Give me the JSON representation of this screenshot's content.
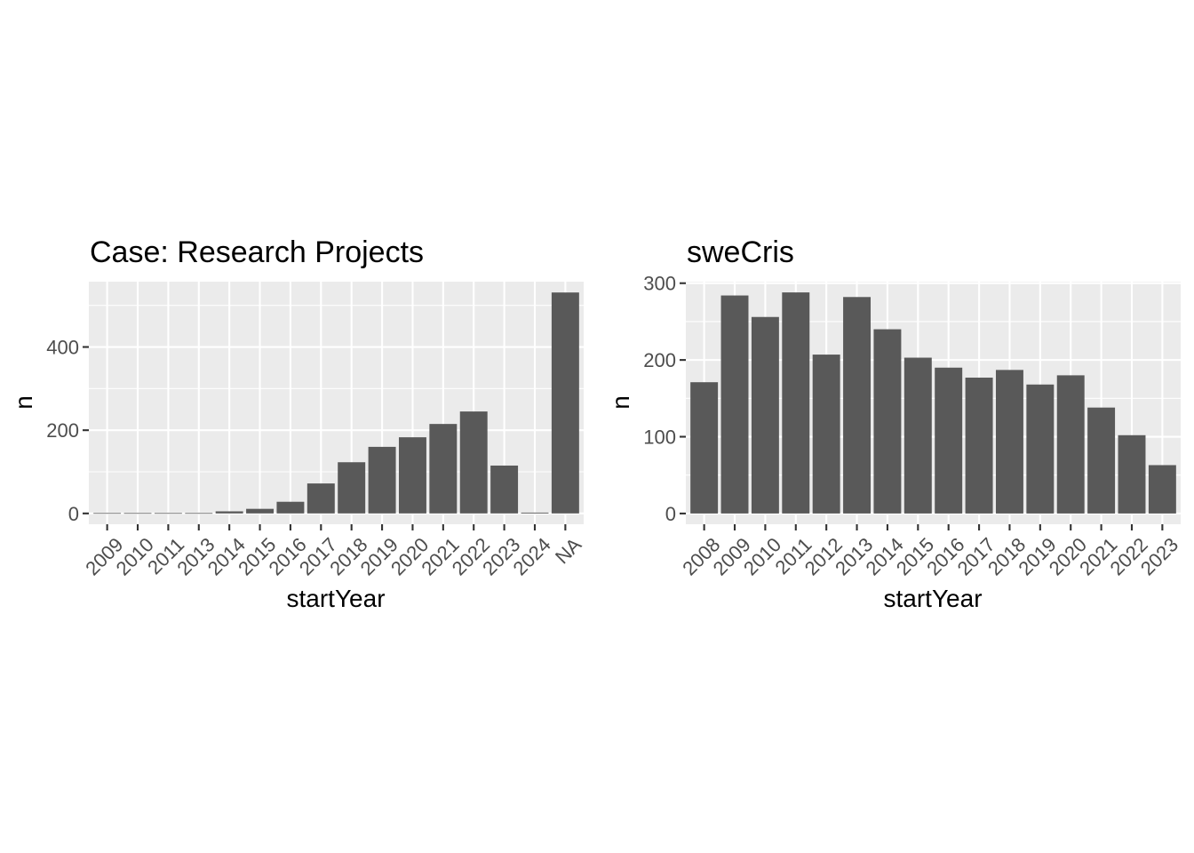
{
  "chart_data": [
    {
      "type": "bar",
      "title": "Case: Research Projects",
      "xlabel": "startYear",
      "ylabel": "n",
      "categories": [
        "2009",
        "2010",
        "2011",
        "2013",
        "2014",
        "2015",
        "2016",
        "2017",
        "2018",
        "2019",
        "2020",
        "2021",
        "2022",
        "2023",
        "2024",
        "NA"
      ],
      "values": [
        1,
        1,
        1,
        1,
        5,
        11,
        28,
        72,
        123,
        160,
        183,
        215,
        245,
        115,
        2,
        531
      ],
      "yticks": [
        0,
        200,
        400
      ],
      "ylim": [
        -26,
        557
      ],
      "bar_color": "#595959",
      "grid": true
    },
    {
      "type": "bar",
      "title": "sweCris",
      "xlabel": "startYear",
      "ylabel": "n",
      "categories": [
        "2008",
        "2009",
        "2010",
        "2011",
        "2012",
        "2013",
        "2014",
        "2015",
        "2016",
        "2017",
        "2018",
        "2019",
        "2020",
        "2021",
        "2022",
        "2023"
      ],
      "values": [
        171,
        284,
        256,
        288,
        207,
        282,
        240,
        203,
        190,
        177,
        187,
        168,
        180,
        138,
        102,
        63
      ],
      "yticks": [
        0,
        100,
        200,
        300
      ],
      "ylim": [
        -14,
        302
      ],
      "bar_color": "#595959",
      "grid": true
    }
  ]
}
